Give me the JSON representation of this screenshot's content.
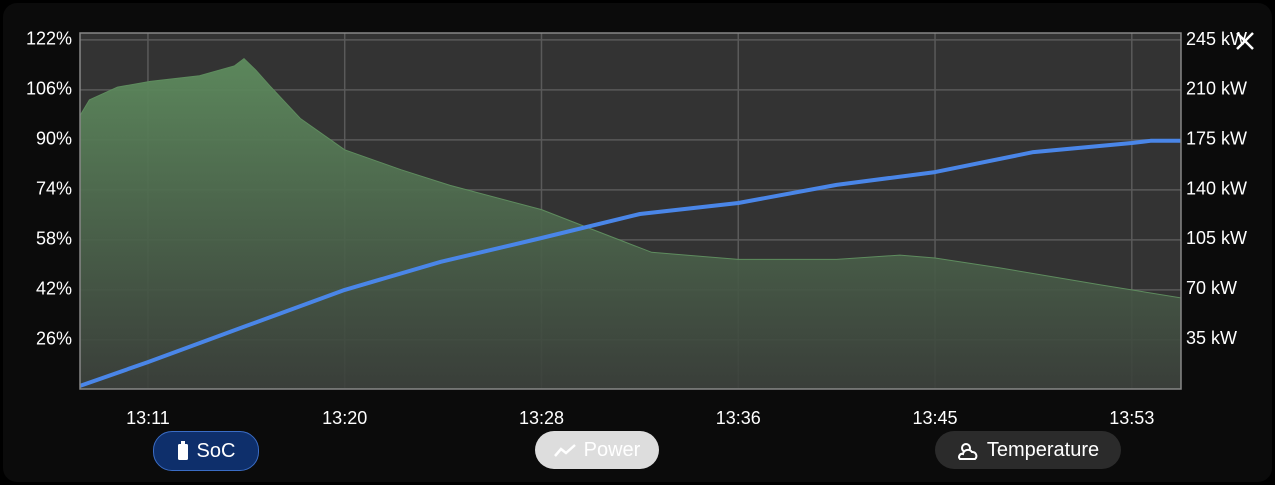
{
  "chart_data": {
    "type": "line-area",
    "xlim": [
      788.3,
      835.3
    ],
    "xticks": [
      {
        "value": 791.2,
        "label": "13:11"
      },
      {
        "value": 799.6,
        "label": "13:20"
      },
      {
        "value": 808,
        "label": "13:28"
      },
      {
        "value": 816.4,
        "label": "13:36"
      },
      {
        "value": 824.8,
        "label": "13:45"
      },
      {
        "value": 833.2,
        "label": "13:53"
      }
    ],
    "ylim": [
      10.3,
      124.2
    ],
    "yticks": [
      {
        "value": 26,
        "label": "26%"
      },
      {
        "value": 42,
        "label": "42%"
      },
      {
        "value": 58,
        "label": "58%"
      },
      {
        "value": 74,
        "label": "74%"
      },
      {
        "value": 90,
        "label": "90%"
      },
      {
        "value": 106,
        "label": "106%"
      },
      {
        "value": 122,
        "label": "122%"
      }
    ],
    "y2lim": [
      0,
      250
    ],
    "y2ticks": [
      {
        "value": 35,
        "label": "35 kW"
      },
      {
        "value": 70,
        "label": "70 kW"
      },
      {
        "value": 105,
        "label": "105 kW"
      },
      {
        "value": 140,
        "label": "140 kW"
      },
      {
        "value": 175,
        "label": "175 kW"
      },
      {
        "value": 210,
        "label": "210 kW"
      },
      {
        "value": 245,
        "label": "245 kW"
      }
    ],
    "grid": true,
    "series": [
      {
        "name": "SoC",
        "color": "#4a86e8",
        "x": [
          788.3,
          791.2,
          795.4,
          799.6,
          803.7,
          808,
          812.2,
          816.4,
          820.6,
          824.8,
          829,
          833.2,
          834.0,
          835.3
        ],
        "values": [
          11.3,
          18.9,
          30.5,
          42,
          51,
          58.6,
          66.3,
          69.8,
          75.6,
          79.7,
          86.1,
          89,
          89.7,
          89.7
        ]
      },
      {
        "name": "Power",
        "color": "#5e8c5e",
        "axis": "y2",
        "x": [
          788.3,
          788.7,
          789.9,
          791.3,
          793.4,
          794.9,
          795.3,
          795.8,
          796.4,
          797.7,
          799.6,
          802,
          804.1,
          808,
          810.5,
          812.7,
          816.4,
          820.6,
          823.3,
          824.8,
          827.6,
          831.9,
          835.3
        ],
        "values": [
          192,
          203,
          212,
          216,
          220,
          227,
          232,
          224,
          213,
          190,
          168,
          154,
          143,
          126,
          110,
          96,
          91,
          91,
          94,
          92,
          85,
          73,
          64
        ]
      }
    ],
    "buttons": [
      "SoC",
      "Power",
      "Temperature"
    ]
  }
}
